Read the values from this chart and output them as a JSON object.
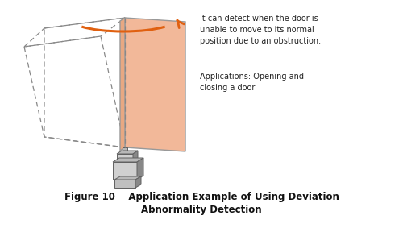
{
  "bg_color": "#ffffff",
  "door_fill": "#f2b899",
  "door_edge": "#999999",
  "door_side_fill": "#e8a882",
  "dashed_color": "#888888",
  "arrow_color": "#e06010",
  "motor_light": "#d0d0d0",
  "motor_mid": "#b8b8b8",
  "motor_dark": "#888888",
  "motor_darker": "#606060",
  "text_color": "#222222",
  "caption_color": "#111111",
  "text1": "It can detect when the door is\nunable to move to its normal\nposition due to an obstruction.",
  "text2": "Applications: Opening and\nclosing a door",
  "caption_line1": "Figure 10    Application Example of Using Deviation",
  "caption_line2": "Abnormality Detection",
  "figsize": [
    5.0,
    2.83
  ],
  "dpi": 100
}
